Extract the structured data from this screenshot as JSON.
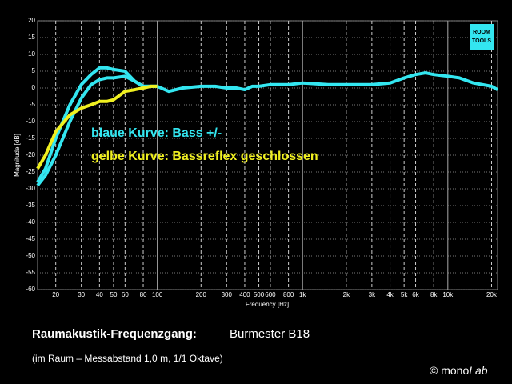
{
  "chart_data": {
    "type": "line",
    "x": [
      15,
      17,
      20,
      25,
      30,
      35,
      40,
      45,
      50,
      60,
      70,
      80,
      90,
      100,
      120,
      150,
      200,
      250,
      300,
      350,
      400,
      450,
      500,
      600,
      700,
      800,
      1000,
      1500,
      2000,
      3000,
      4000,
      5000,
      6000,
      7000,
      8000,
      10000,
      12000,
      15000,
      20000,
      22000
    ],
    "series": [
      {
        "color": "#33e6f0",
        "values": [
          -28,
          -24,
          -15,
          -5,
          1,
          4,
          6,
          6,
          5.5,
          5,
          2,
          0.5,
          0.5,
          0.5,
          -1,
          0,
          0.5,
          0.5,
          0,
          0,
          -0.5,
          0.5,
          0.5,
          1,
          1,
          1,
          1.5,
          1,
          1,
          1,
          1.5,
          3,
          4,
          4.5,
          4,
          3.5,
          3,
          1.5,
          0.5,
          -0.5
        ]
      },
      {
        "color": "#33e6f0",
        "values": [
          -29,
          -26,
          -20,
          -10,
          -3,
          1,
          2.5,
          3,
          3,
          3.5,
          2,
          0.5,
          0.5,
          0.5,
          null,
          null,
          null,
          null,
          null,
          null,
          null,
          null,
          null,
          null,
          null,
          null,
          null,
          null,
          null,
          null,
          null,
          null,
          null,
          null,
          null,
          null,
          null,
          null,
          null,
          null
        ]
      },
      {
        "color": "#f0f020",
        "values": [
          -24,
          -20,
          -13,
          -8,
          -6,
          -5,
          -4,
          -4,
          -3.5,
          -1,
          -0.5,
          0,
          0.5,
          0.5,
          null,
          null,
          null,
          null,
          null,
          null,
          null,
          null,
          null,
          null,
          null,
          null,
          null,
          null,
          null,
          null,
          null,
          null,
          null,
          null,
          null,
          null,
          null,
          null,
          null,
          null
        ]
      }
    ],
    "xlim": [
      15,
      22000
    ],
    "log_x": true,
    "xticks": [
      20,
      30,
      40,
      50,
      60,
      80,
      100,
      200,
      300,
      400,
      500,
      600,
      800,
      {
        "value": 1000,
        "label": "1k"
      },
      {
        "value": 2000,
        "label": "2k"
      },
      {
        "value": 3000,
        "label": "3k"
      },
      {
        "value": 4000,
        "label": "4k"
      },
      {
        "value": 5000,
        "label": "5k"
      },
      {
        "value": 6000,
        "label": "6k"
      },
      {
        "value": 8000,
        "label": "8k"
      },
      {
        "value": 10000,
        "label": "10k"
      },
      {
        "value": 20000,
        "label": "20k"
      }
    ],
    "ylim": [
      -60,
      20
    ],
    "yticks": [
      20,
      15,
      10,
      5,
      0,
      -5,
      -10,
      -15,
      -20,
      -25,
      -30,
      -35,
      -40,
      -45,
      -50,
      -55,
      -60
    ],
    "grid": true,
    "xlabel": "Frequency [Hz]",
    "ylabel": "Magnitude [dB]",
    "annotations": [
      "blaue Kurve: Bass +/-",
      "gelbe Kurve: Bassreflex geschlossen"
    ],
    "logo": [
      "ROOM",
      "TOOLS"
    ]
  },
  "footer": {
    "title": "Raumakustik-Frequenzgang:",
    "model": "Burmester B18",
    "note": "(im Raum – Messabstand 1,0 m, 1/1 Oktave)",
    "credit": [
      "© mono",
      "Lab"
    ]
  }
}
